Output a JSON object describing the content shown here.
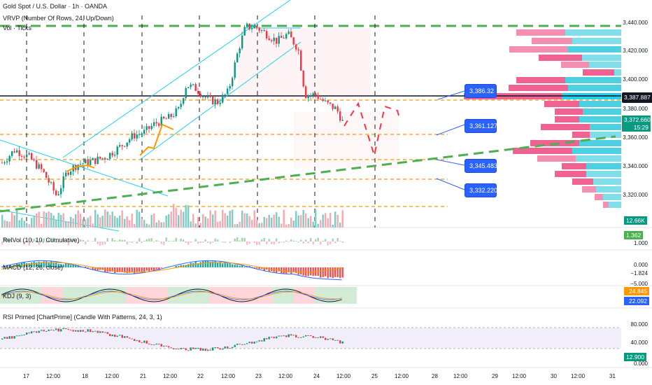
{
  "header": {
    "title": "Gold Spot / U.S. Dollar · 1h · OANDA",
    "vrvp_label": "VRVP (Number Of Rows, 24, Up/Down)",
    "vol_label": "Vol · Ticks"
  },
  "price_axis": {
    "ticks": [
      "3,440.000",
      "3,420.000",
      "3,400.000",
      "3,380.000",
      "3,360.000",
      "3,340.000",
      "3,320.000"
    ],
    "current_line_price": "3,387.887",
    "last_price": "3,372.660",
    "countdown": "15:29",
    "last_price_color": "#089981"
  },
  "callouts": [
    "3,386.32",
    "3,361.127",
    "3,345.483",
    "3,332.220"
  ],
  "volume_pane": {
    "value": "12.66K"
  },
  "relvol_pane": {
    "title": "RelVol (10, 10, Cumulative)",
    "value": "1.362",
    "axis": "1.000"
  },
  "macd_pane": {
    "title": "MACD (12, 26, close)",
    "axis_top": "0.000",
    "value": "−1.824",
    "axis_bottom": "−5.000"
  },
  "kdj_pane": {
    "title": "KDJ (9, 3)",
    "value1": "24.845",
    "value2": "22.092"
  },
  "rsi_pane": {
    "title": "RSI Primed [ChartPrime] (Candle With Patterns, 24, 3, 1)",
    "axis_top": "80.000",
    "axis_mid": "40.000",
    "value": "12.900",
    "axis_bottom": "0.000"
  },
  "time_axis": [
    "17",
    "12:00",
    "18",
    "12:00",
    "21",
    "12:00",
    "22",
    "12:00",
    "23",
    "12:00",
    "24",
    "12:00",
    "25",
    "12:00",
    "28",
    "12:00",
    "29",
    "12:00",
    "30",
    "12:00",
    "31"
  ],
  "colors": {
    "up": "#089981",
    "down": "#f23645",
    "blue_tag": "#2962ff",
    "orange": "#ff9800",
    "green_dashed": "#4caf50",
    "cyan": "#22d1ee",
    "pink": "#f06292"
  }
}
